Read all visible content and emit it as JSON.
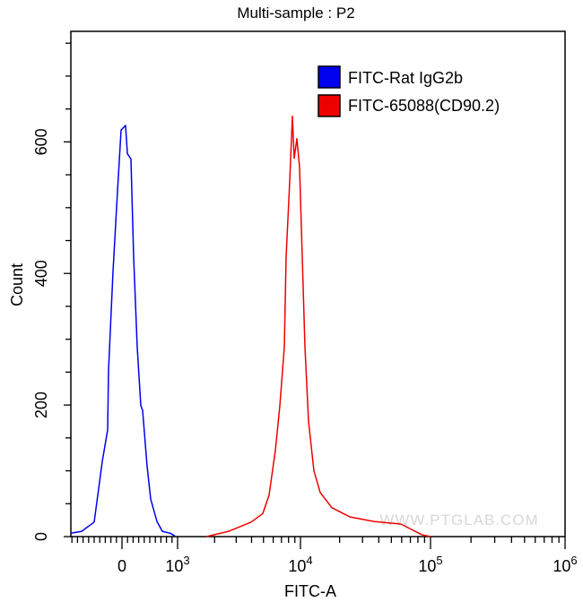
{
  "chart_data": {
    "type": "line",
    "title": "Multi-sample : P2",
    "xlabel": "FITC-A",
    "ylabel": "Count",
    "x_scale": "biexponential",
    "x_ticks": [
      {
        "value": 0,
        "base": "0",
        "exp": ""
      },
      {
        "value": 1000,
        "base": "10",
        "exp": "3"
      },
      {
        "value": 10000,
        "base": "10",
        "exp": "4"
      },
      {
        "value": 100000,
        "base": "10",
        "exp": "5"
      },
      {
        "value": 1000000,
        "base": "10",
        "exp": "6"
      }
    ],
    "y_ticks": [
      0,
      200,
      400,
      600
    ],
    "ylim": [
      0,
      768
    ],
    "grid": false,
    "legend_position": "top-right",
    "watermark": "WWW.PTGLAB.COM",
    "series": [
      {
        "name": "FITC-Rat IgG2b",
        "color": "#0000ee",
        "x": [
          -935,
          -726,
          -500,
          -355,
          -258,
          -242,
          -161,
          -81,
          -16,
          65,
          97,
          161,
          210,
          274,
          339,
          371,
          452,
          516,
          629,
          726,
          871,
          952
        ],
        "y": [
          5,
          8,
          22,
          114,
          162,
          253,
          403,
          525,
          618,
          625,
          582,
          574,
          425,
          288,
          199,
          192,
          107,
          57,
          23,
          8,
          5,
          1
        ]
      },
      {
        "name": "FITC-65088(CD90.2)",
        "color": "#ee0000",
        "x": [
          1712,
          2606,
          3970,
          4935,
          5554,
          6250,
          6795,
          7390,
          7645,
          8170,
          8590,
          8890,
          9350,
          9840,
          10330,
          10820,
          11530,
          12690,
          14180,
          17430,
          23940,
          36790,
          59200,
          85300,
          100000
        ],
        "y": [
          0,
          8,
          22,
          35,
          63,
          131,
          199,
          288,
          425,
          540,
          639,
          575,
          605,
          561,
          425,
          288,
          175,
          100,
          67,
          44,
          30,
          23,
          19,
          3,
          0
        ]
      }
    ]
  }
}
